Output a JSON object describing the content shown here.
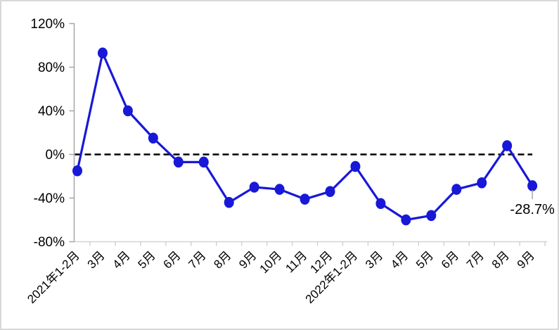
{
  "chart_data": {
    "type": "line",
    "title": "",
    "xlabel": "",
    "ylabel": "",
    "unit": "%",
    "categories": [
      "2021年1-2月",
      "3月",
      "4月",
      "5月",
      "6月",
      "7月",
      "8月",
      "9月",
      "10月",
      "11月",
      "12月",
      "2022年1-2月",
      "3月",
      "4月",
      "5月",
      "6月",
      "7月",
      "8月",
      "9月"
    ],
    "values": [
      -15,
      93,
      40,
      15,
      -7,
      -7,
      -44,
      -30,
      -32,
      -41,
      -34,
      -11,
      -45,
      -60,
      -56,
      -32,
      -26,
      8,
      -28.7
    ],
    "ylim": [
      -80,
      120
    ],
    "y_ticks": [
      120,
      80,
      40,
      0,
      -40,
      -80
    ],
    "y_tick_labels": [
      "120%",
      "80%",
      "40%",
      "0%",
      "-40%",
      "-80%"
    ],
    "grid": "off",
    "legend": "none",
    "zero_line": {
      "style": "dashed",
      "color": "#000000",
      "value": 0
    },
    "annotation": {
      "text": "-28.7%",
      "target_index": 18
    },
    "colors": {
      "line": "#1818d8",
      "marker": "#1818d8",
      "zero_line": "#000000",
      "y_axis": "#a6a6a6",
      "x_axis": "#d2d2d2",
      "leader_line": "#a6a6a6",
      "frame_border": "#d8d8d8",
      "text": "#000000"
    }
  }
}
